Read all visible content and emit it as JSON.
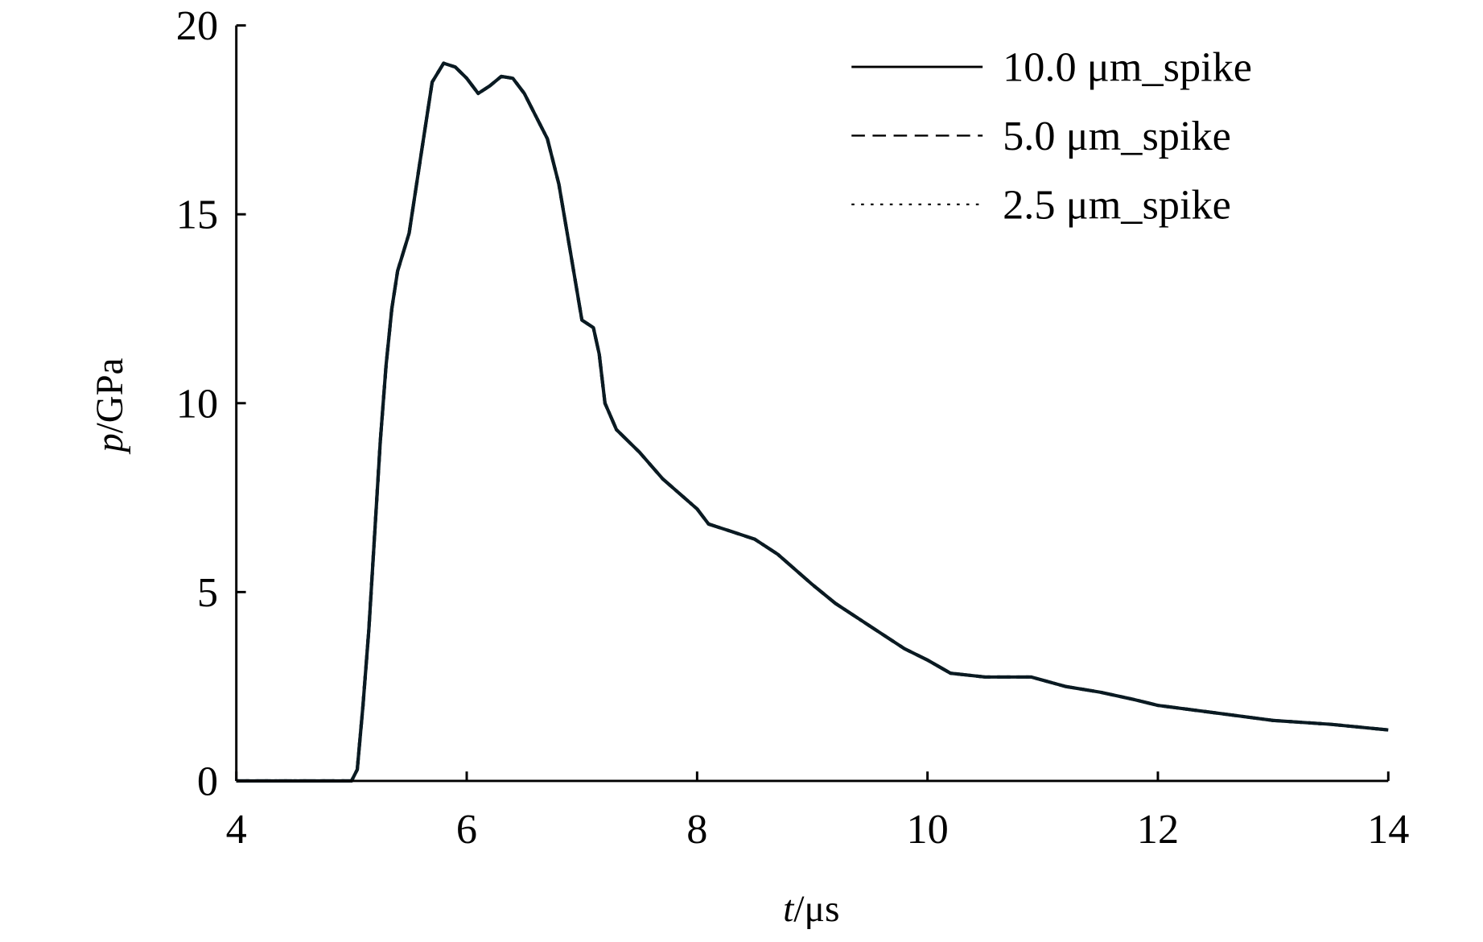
{
  "chart_data": {
    "type": "line",
    "title": "",
    "xlabel_italic": "t",
    "xlabel_unit": "/μs",
    "ylabel_italic": "p",
    "ylabel_unit": "/GPa",
    "xlim": [
      4,
      14
    ],
    "ylim": [
      0,
      20
    ],
    "xticks": [
      4,
      6,
      8,
      10,
      12,
      14
    ],
    "yticks": [
      0,
      5,
      10,
      15,
      20
    ],
    "grid": false,
    "legend_position": "top-right",
    "series": [
      {
        "name": "10.0 μm_spike",
        "dash": "solid"
      },
      {
        "name": "5.0 μm_spike",
        "dash": "dashed"
      },
      {
        "name": "2.5 μm_spike",
        "dash": "dotted"
      }
    ],
    "x": [
      4.0,
      5.0,
      5.05,
      5.1,
      5.15,
      5.2,
      5.25,
      5.3,
      5.35,
      5.4,
      5.5,
      5.6,
      5.7,
      5.8,
      5.9,
      6.0,
      6.1,
      6.2,
      6.3,
      6.4,
      6.5,
      6.6,
      6.7,
      6.8,
      6.9,
      7.0,
      7.1,
      7.15,
      7.2,
      7.3,
      7.5,
      7.7,
      8.0,
      8.1,
      8.3,
      8.5,
      8.7,
      9.0,
      9.2,
      9.4,
      9.6,
      9.8,
      10.0,
      10.2,
      10.5,
      10.9,
      11.2,
      11.5,
      11.8,
      12.0,
      12.5,
      13.0,
      13.5,
      14.0
    ],
    "y": [
      0,
      0,
      0.3,
      2,
      4,
      6.5,
      9,
      11,
      12.5,
      13.5,
      14.5,
      16.5,
      18.5,
      19.0,
      18.9,
      18.6,
      18.2,
      18.4,
      18.65,
      18.6,
      18.2,
      17.6,
      17.0,
      15.8,
      14.0,
      12.2,
      12.0,
      11.3,
      10.0,
      9.3,
      8.7,
      8.0,
      7.2,
      6.8,
      6.6,
      6.4,
      6.0,
      5.2,
      4.7,
      4.3,
      3.9,
      3.5,
      3.2,
      2.85,
      2.75,
      2.75,
      2.5,
      2.35,
      2.15,
      2.0,
      1.8,
      1.6,
      1.5,
      1.35
    ]
  }
}
